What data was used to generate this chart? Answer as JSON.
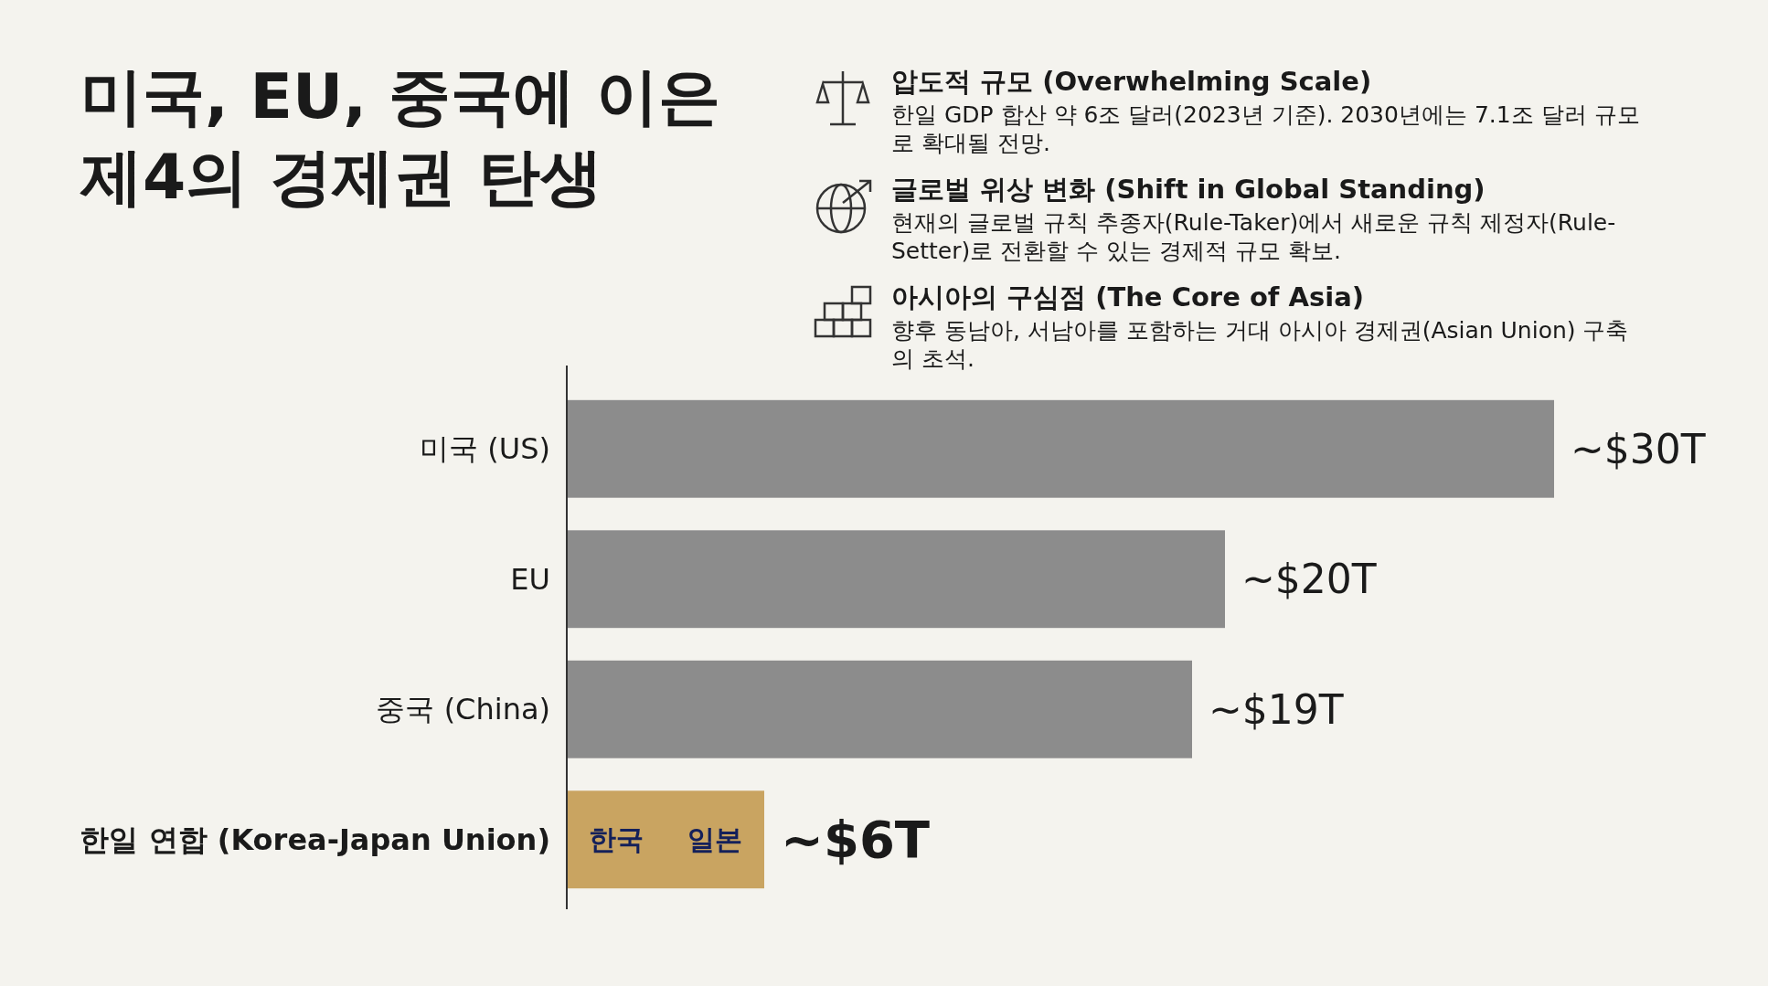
{
  "chart_data": {
    "type": "bar",
    "orientation": "horizontal",
    "title": "미국, EU, 중국에 이은 제4의 경제권 탄생",
    "categories": [
      "미국 (US)",
      "EU",
      "중국 (China)",
      "한일 연합 (Korea-Japan Union)"
    ],
    "values": [
      30,
      20,
      19,
      6
    ],
    "colors": [
      "#8c8c8c",
      "#8c8c8c",
      "#8c8c8c",
      "#c9a461"
    ],
    "value_labels": [
      "~$30T",
      "~$20T",
      "~$19T",
      "~$6T"
    ],
    "annotations": [
      "압도적 규모 (Overwhelming Scale)",
      "한일 GDP 합산 약 6조 달러(2023년 기준). 2030년에는 7.1조 달러 규모로 확대될 전망.",
      "글로벌 위상 변화 (Shift in Global Standing)",
      "현재의 글로벌 규칙 추종자(Rule-Taker)에서 새로운 규칙 제정자(Rule-Setter)로 전환할 수 있는 경제적 규모 확보.",
      "아시아의 구심점 (The Core of Asia)",
      "향후 동남아, 서남아를 포함하는 거대 아시아 경제권(Asian Union) 구축의 초석.",
      "한국",
      "일본"
    ]
  }
}
